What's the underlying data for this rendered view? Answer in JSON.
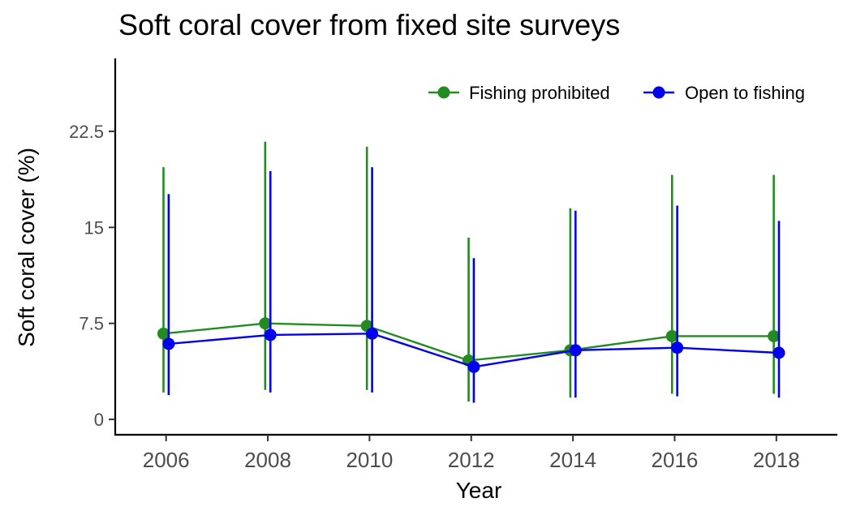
{
  "chart_data": {
    "type": "line",
    "title": "Soft coral cover from fixed site surveys",
    "xlabel": "Year",
    "ylabel": "Soft coral cover (%)",
    "xlim": [
      2005,
      2019.2
    ],
    "ylim": [
      -1.2,
      28.2
    ],
    "x_ticks": [
      2006,
      2008,
      2010,
      2012,
      2014,
      2016,
      2018
    ],
    "y_ticks": [
      0,
      7.5,
      15,
      22.5
    ],
    "y_tick_labels": [
      "0",
      "7.5",
      "15",
      "22.5"
    ],
    "grid": false,
    "legend_position": "top-right",
    "series": [
      {
        "name": "Fishing prohibited",
        "color": "#228B22",
        "x": [
          2006,
          2008,
          2010,
          2012,
          2014,
          2016,
          2018
        ],
        "values": [
          6.7,
          7.5,
          7.3,
          4.6,
          5.4,
          6.5,
          6.5
        ],
        "error_low": [
          2.1,
          2.3,
          2.3,
          1.4,
          1.7,
          2.0,
          2.0
        ],
        "error_high": [
          19.7,
          21.7,
          21.3,
          14.2,
          16.5,
          19.1,
          19.1
        ]
      },
      {
        "name": "Open to fishing",
        "color": "#0000EE",
        "x": [
          2006,
          2008,
          2010,
          2012,
          2014,
          2016,
          2018
        ],
        "values": [
          5.9,
          6.6,
          6.7,
          4.1,
          5.4,
          5.6,
          5.2
        ],
        "error_low": [
          1.9,
          2.1,
          2.1,
          1.3,
          1.7,
          1.8,
          1.7
        ],
        "error_high": [
          17.6,
          19.4,
          19.7,
          12.6,
          16.3,
          16.7,
          15.5
        ]
      }
    ]
  }
}
